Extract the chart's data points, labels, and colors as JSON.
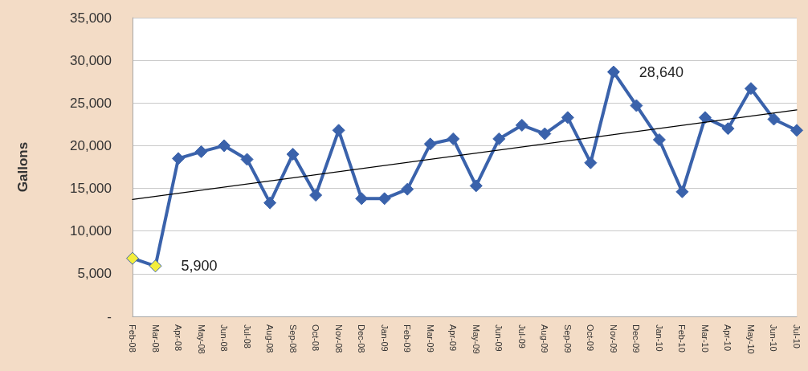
{
  "chart_data": {
    "type": "line",
    "ylabel": "Gallons",
    "categories": [
      "Feb-08",
      "Mar-08",
      "Apr-08",
      "May-08",
      "Jun-08",
      "Jul-08",
      "Aug-08",
      "Sep-08",
      "Oct-08",
      "Nov-08",
      "Dec-08",
      "Jan-09",
      "Feb-09",
      "Mar-09",
      "Apr-09",
      "May-09",
      "Jun-09",
      "Jul-09",
      "Aug-09",
      "Sep-09",
      "Oct-09",
      "Nov-09",
      "Dec-09",
      "Jan-10",
      "Feb-10",
      "Mar-10",
      "Apr-10",
      "May-10",
      "Jun-10",
      "Jul-10"
    ],
    "series": [
      {
        "color": "#3a62ab",
        "colors": [
          "#f4ee3c",
          "#f4ee3c",
          "#3a62ab",
          "#3a62ab",
          "#3a62ab",
          "#3a62ab",
          "#3a62ab",
          "#3a62ab",
          "#3a62ab",
          "#3a62ab",
          "#3a62ab",
          "#3a62ab",
          "#3a62ab",
          "#3a62ab",
          "#3a62ab",
          "#3a62ab",
          "#3a62ab",
          "#3a62ab",
          "#3a62ab",
          "#3a62ab",
          "#3a62ab",
          "#3a62ab",
          "#3a62ab",
          "#3a62ab",
          "#3a62ab",
          "#3a62ab",
          "#3a62ab",
          "#3a62ab",
          "#3a62ab",
          "#3a62ab"
        ],
        "values": [
          6800,
          5900,
          18500,
          19300,
          20000,
          18400,
          13300,
          19000,
          14200,
          21800,
          13800,
          13800,
          14900,
          20200,
          20800,
          15300,
          20800,
          22400,
          21400,
          23300,
          18000,
          28640,
          24700,
          20700,
          14600,
          23300,
          22000,
          26700,
          23100,
          21800
        ],
        "value_labels": [
          null,
          "5,900",
          null,
          null,
          null,
          null,
          null,
          null,
          null,
          null,
          null,
          null,
          null,
          null,
          null,
          null,
          null,
          null,
          null,
          null,
          null,
          "28,640",
          null,
          null,
          null,
          null,
          null,
          null,
          null,
          null
        ]
      },
      {
        "x": [
          "Feb-08",
          "Jul-10"
        ],
        "values": [
          13700,
          24200
        ],
        "color": "#000000",
        "marker": "none"
      }
    ],
    "ylim": [
      0,
      35000
    ],
    "yticks": [
      {
        "value": 0,
        "label": "-"
      },
      {
        "value": 5000,
        "label": "5,000"
      },
      {
        "value": 10000,
        "label": "10,000"
      },
      {
        "value": 15000,
        "label": "15,000"
      },
      {
        "value": 20000,
        "label": "20,000"
      },
      {
        "value": 25000,
        "label": "25,000"
      },
      {
        "value": 30000,
        "label": "30,000"
      },
      {
        "value": 35000,
        "label": "35,000"
      }
    ],
    "grid": "y",
    "marker": "diamond",
    "line_style": "solid"
  }
}
